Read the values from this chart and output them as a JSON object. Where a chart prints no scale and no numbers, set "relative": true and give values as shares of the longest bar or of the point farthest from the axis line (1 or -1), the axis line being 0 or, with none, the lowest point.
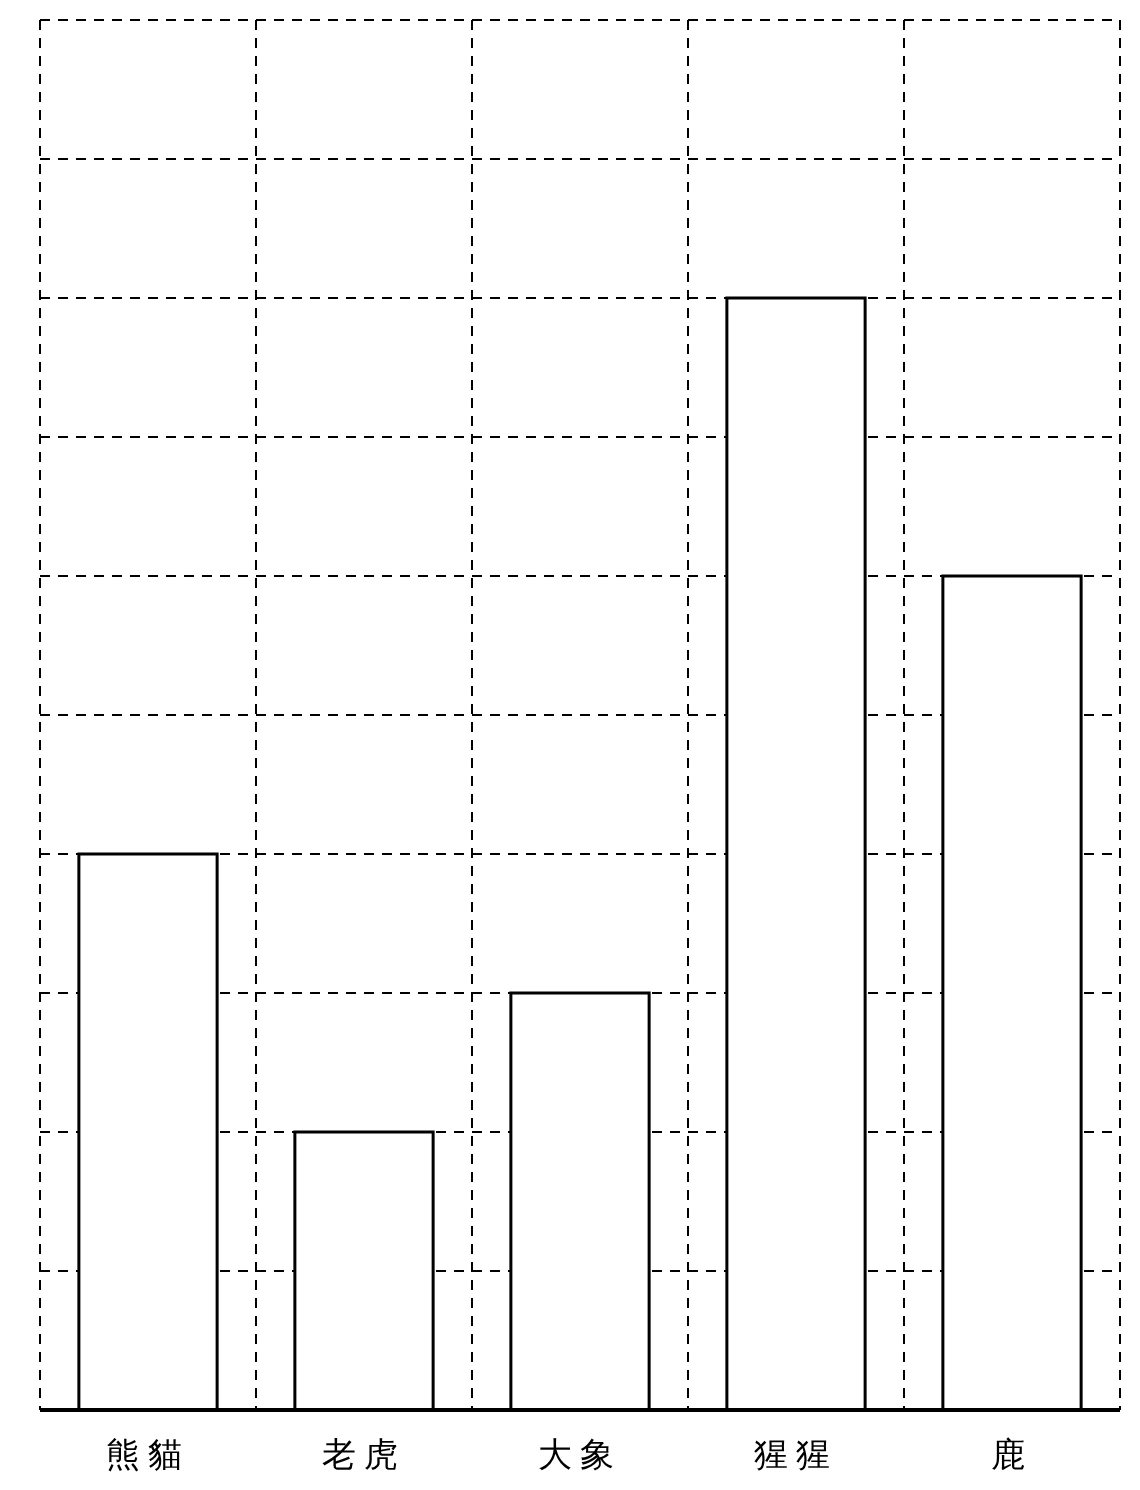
{
  "chart_data": {
    "type": "bar",
    "categories": [
      "熊貓",
      "老虎",
      "大象",
      "猩猩",
      "鹿"
    ],
    "values": [
      0.5,
      0.25,
      0.375,
      1,
      0.75
    ],
    "relative": true,
    "color": "#000000",
    "grid": true
  }
}
